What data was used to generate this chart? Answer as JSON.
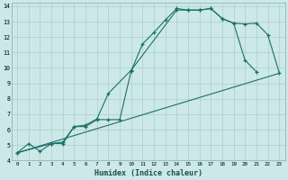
{
  "xlabel": "Humidex (Indice chaleur)",
  "ylabel": "",
  "background_color": "#cde8e8",
  "grid_color": "#aacfcf",
  "line_color": "#1a7068",
  "xlim": [
    -0.5,
    23.5
  ],
  "ylim": [
    4,
    14.2
  ],
  "xticks": [
    0,
    1,
    2,
    3,
    4,
    5,
    6,
    7,
    8,
    9,
    10,
    11,
    12,
    13,
    14,
    15,
    16,
    17,
    18,
    19,
    20,
    21,
    22,
    23
  ],
  "yticks": [
    4,
    5,
    6,
    7,
    8,
    9,
    10,
    11,
    12,
    13,
    14
  ],
  "line1_x": [
    0,
    1,
    2,
    3,
    4,
    5,
    6,
    7,
    8,
    9,
    10,
    11,
    12,
    13,
    14,
    15,
    16,
    17,
    18,
    19,
    20,
    21
  ],
  "line1_y": [
    4.5,
    5.1,
    4.6,
    5.1,
    5.1,
    6.2,
    6.2,
    6.65,
    6.65,
    6.65,
    9.8,
    11.55,
    12.3,
    13.1,
    13.85,
    13.75,
    13.75,
    13.85,
    13.2,
    12.9,
    10.5,
    9.75
  ],
  "line2_x": [
    0,
    3,
    4,
    5,
    6,
    7,
    8,
    10,
    14,
    15,
    16,
    17,
    18,
    19,
    20,
    21,
    22,
    23
  ],
  "line2_y": [
    4.5,
    5.1,
    5.2,
    6.2,
    6.3,
    6.7,
    8.35,
    9.85,
    13.75,
    13.75,
    13.75,
    13.85,
    13.2,
    12.9,
    12.85,
    12.9,
    12.15,
    9.7
  ],
  "line3_x": [
    0,
    23
  ],
  "line3_y": [
    4.5,
    9.65
  ]
}
